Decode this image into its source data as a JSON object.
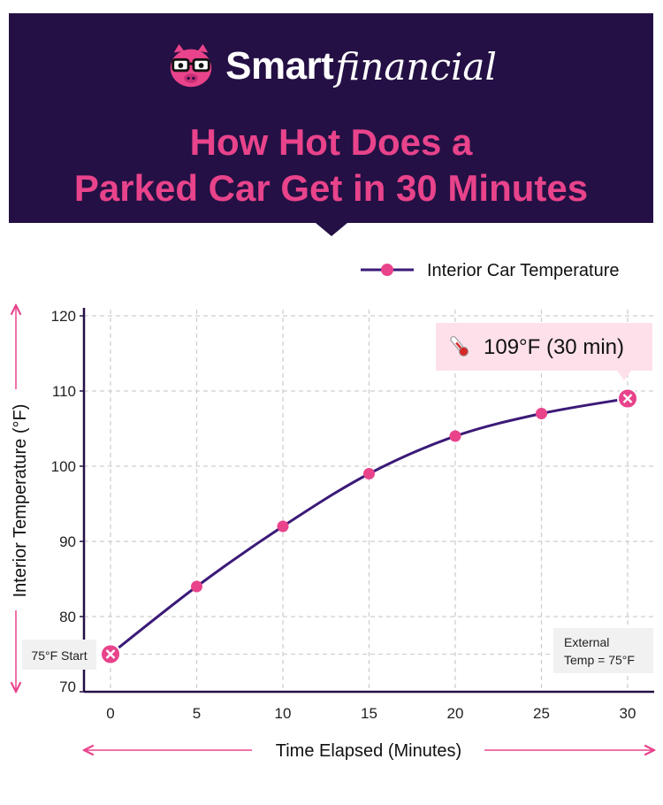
{
  "brand": {
    "name_bold": "Smart",
    "name_script": "financial",
    "mascot_icon": "pig-with-glasses-icon",
    "colors": {
      "header_bg": "#241044",
      "accent": "#e8438b",
      "line": "#3b1a78"
    }
  },
  "title_lines": [
    "How Hot Does a",
    "Parked Car Get in 30 Minutes"
  ],
  "chart_data": {
    "type": "line",
    "x": [
      0,
      5,
      10,
      15,
      20,
      25,
      30
    ],
    "series": [
      {
        "name": "Interior Car Temperature",
        "values": [
          75,
          84,
          92,
          99,
          104,
          107,
          109
        ]
      }
    ],
    "xlabel": "Time Elapsed (Minutes)",
    "ylabel": "Interior Temperature (°F)",
    "xlim": [
      0,
      30
    ],
    "ylim": [
      70,
      120
    ],
    "x_ticks": [
      0,
      5,
      10,
      15,
      20,
      25,
      30
    ],
    "y_ticks": [
      70,
      80,
      90,
      100,
      110,
      120
    ],
    "grid": true,
    "legend": "top-right",
    "external_temp_f": 75,
    "annotations": {
      "start_label": "75°F Start",
      "external_line1": "External",
      "external_line2": "Temp = 75°F",
      "peak_callout": "109°F (30 min)",
      "peak_icon": "thermometer-icon"
    }
  }
}
